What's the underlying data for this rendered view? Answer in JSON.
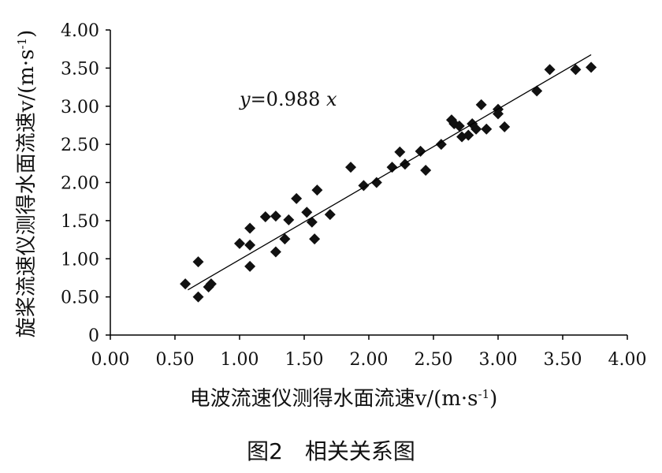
{
  "chart_data": {
    "type": "scatter",
    "xlabel": "电波流速仪测得水面流速v/(m·s",
    "xlabel_sup": "-1",
    "xlabel_end": ")",
    "ylabel": "旋桨流速仪测得水面流速v/(m·s",
    "ylabel_sup": "-1",
    "ylabel_end": ")",
    "xlim": [
      0,
      4
    ],
    "ylim": [
      0,
      4
    ],
    "xticks": [
      "0.00",
      "0.50",
      "1.00",
      "1.50",
      "2.00",
      "2.50",
      "3.00",
      "3.50",
      "4.00"
    ],
    "yticks": [
      "0",
      "0.50",
      "1.00",
      "1.50",
      "2.00",
      "2.50",
      "3.00",
      "3.50",
      "4.00"
    ],
    "grid": false,
    "equation": {
      "var": "y",
      "text": "=0.988 ",
      "xvar": "x"
    },
    "trendline": {
      "slope": 0.988,
      "x_range": [
        0.6,
        3.72
      ]
    },
    "points": [
      {
        "x": 0.58,
        "y": 0.67
      },
      {
        "x": 0.68,
        "y": 0.96
      },
      {
        "x": 0.68,
        "y": 0.5
      },
      {
        "x": 0.76,
        "y": 0.63
      },
      {
        "x": 0.78,
        "y": 0.67
      },
      {
        "x": 1.0,
        "y": 1.2
      },
      {
        "x": 1.08,
        "y": 1.4
      },
      {
        "x": 1.08,
        "y": 1.18
      },
      {
        "x": 1.08,
        "y": 0.9
      },
      {
        "x": 1.2,
        "y": 1.55
      },
      {
        "x": 1.28,
        "y": 1.56
      },
      {
        "x": 1.28,
        "y": 1.09
      },
      {
        "x": 1.35,
        "y": 1.26
      },
      {
        "x": 1.38,
        "y": 1.51
      },
      {
        "x": 1.44,
        "y": 1.79
      },
      {
        "x": 1.52,
        "y": 1.61
      },
      {
        "x": 1.56,
        "y": 1.48
      },
      {
        "x": 1.58,
        "y": 1.26
      },
      {
        "x": 1.6,
        "y": 1.9
      },
      {
        "x": 1.7,
        "y": 1.58
      },
      {
        "x": 1.86,
        "y": 2.2
      },
      {
        "x": 1.96,
        "y": 1.96
      },
      {
        "x": 2.06,
        "y": 2.0
      },
      {
        "x": 2.18,
        "y": 2.2
      },
      {
        "x": 2.24,
        "y": 2.4
      },
      {
        "x": 2.28,
        "y": 2.24
      },
      {
        "x": 2.4,
        "y": 2.41
      },
      {
        "x": 2.44,
        "y": 2.16
      },
      {
        "x": 2.56,
        "y": 2.5
      },
      {
        "x": 2.64,
        "y": 2.82
      },
      {
        "x": 2.66,
        "y": 2.77
      },
      {
        "x": 2.7,
        "y": 2.74
      },
      {
        "x": 2.72,
        "y": 2.6
      },
      {
        "x": 2.77,
        "y": 2.62
      },
      {
        "x": 2.8,
        "y": 2.77
      },
      {
        "x": 2.83,
        "y": 2.7
      },
      {
        "x": 2.87,
        "y": 3.02
      },
      {
        "x": 2.91,
        "y": 2.7
      },
      {
        "x": 3.0,
        "y": 2.96
      },
      {
        "x": 3.0,
        "y": 2.9
      },
      {
        "x": 3.05,
        "y": 2.73
      },
      {
        "x": 3.3,
        "y": 3.2
      },
      {
        "x": 3.4,
        "y": 3.48
      },
      {
        "x": 3.6,
        "y": 3.48
      },
      {
        "x": 3.72,
        "y": 3.51
      }
    ]
  },
  "caption": "图2　相关关系图"
}
